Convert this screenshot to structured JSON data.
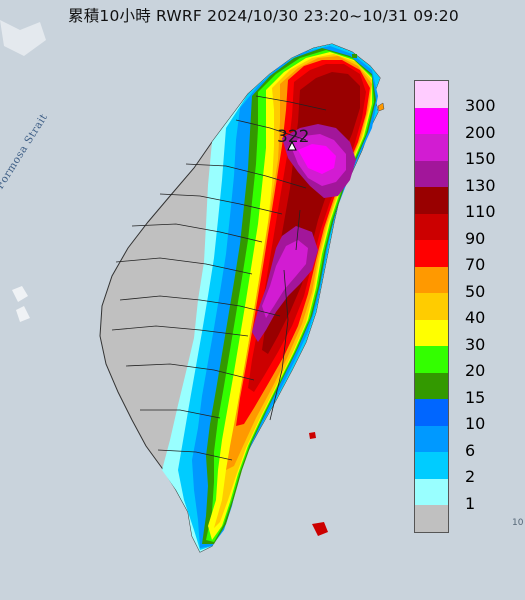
{
  "title": "累積10小時 RWRF 2024/10/30 23:20~10/31 09:20",
  "basemap_label": "Formosa Strait",
  "max_value_label": "322",
  "corner_label": "10",
  "legend": [
    {
      "label": "300",
      "color": "#ffccff"
    },
    {
      "label": "200",
      "color": "#ff00ff"
    },
    {
      "label": "150",
      "color": "#d21cd2"
    },
    {
      "label": "130",
      "color": "#a2169a"
    },
    {
      "label": "110",
      "color": "#990000"
    },
    {
      "label": "90",
      "color": "#cc0000"
    },
    {
      "label": "70",
      "color": "#ff0000"
    },
    {
      "label": "50",
      "color": "#ff9900"
    },
    {
      "label": "40",
      "color": "#ffcc00"
    },
    {
      "label": "30",
      "color": "#ffff00"
    },
    {
      "label": "20",
      "color": "#33ff00"
    },
    {
      "label": "15",
      "color": "#339900"
    },
    {
      "label": "10",
      "color": "#0066ff"
    },
    {
      "label": "6",
      "color": "#0099ff"
    },
    {
      "label": "2",
      "color": "#00ccff"
    },
    {
      "label": "1",
      "color": "#99ffff"
    },
    {
      "label": "",
      "color": "#c0c0c0"
    }
  ]
}
